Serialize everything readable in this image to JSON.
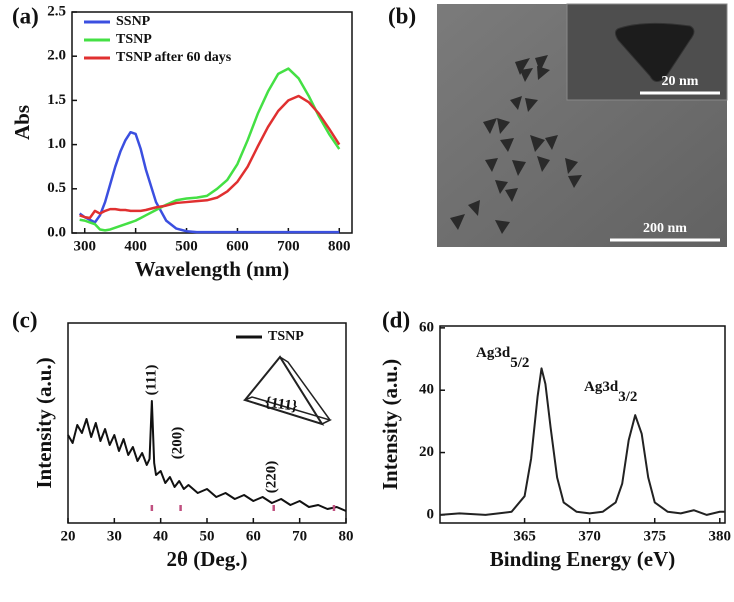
{
  "chart_data": [
    {
      "type": "line",
      "panel_label": "(a)",
      "xlabel": "Wavelength (nm)",
      "ylabel": "Abs",
      "xlim": [
        275,
        825
      ],
      "ylim": [
        0,
        2.5
      ],
      "xticks": [
        300,
        400,
        500,
        600,
        700,
        800
      ],
      "yticks": [
        {
          "value": 0,
          "label": "0.0"
        },
        0.5,
        {
          "value": 1,
          "label": "1.0"
        },
        1.5,
        {
          "value": 2,
          "label": "2.0"
        },
        2.5
      ],
      "x": [
        290,
        300,
        310,
        320,
        330,
        340,
        350,
        360,
        370,
        380,
        390,
        400,
        410,
        420,
        440,
        460,
        480,
        500,
        520,
        540,
        560,
        580,
        600,
        620,
        640,
        660,
        680,
        700,
        720,
        740,
        760,
        780,
        800
      ],
      "series": [
        {
          "name": "SSNP",
          "color": "#3b4fe0",
          "values": [
            0.22,
            0.18,
            0.15,
            0.12,
            0.2,
            0.35,
            0.55,
            0.75,
            0.92,
            1.05,
            1.14,
            1.12,
            0.95,
            0.72,
            0.35,
            0.14,
            0.05,
            0.02,
            0.01,
            0.01,
            0.01,
            0.01,
            0.01,
            0.01,
            0.01,
            0.01,
            0.01,
            0.01,
            0.01,
            0.01,
            0.01,
            0.01,
            0.01
          ]
        },
        {
          "name": "TSNP",
          "color": "#44e044",
          "values": [
            0.15,
            0.14,
            0.12,
            0.1,
            0.04,
            0.03,
            0.04,
            0.06,
            0.08,
            0.1,
            0.12,
            0.14,
            0.17,
            0.2,
            0.26,
            0.32,
            0.37,
            0.39,
            0.4,
            0.42,
            0.5,
            0.6,
            0.78,
            1.05,
            1.35,
            1.6,
            1.8,
            1.86,
            1.75,
            1.55,
            1.32,
            1.12,
            0.95
          ]
        },
        {
          "name": "TSNP after 60 days",
          "color": "#e03030",
          "values": [
            0.2,
            0.18,
            0.17,
            0.25,
            0.22,
            0.25,
            0.27,
            0.27,
            0.26,
            0.26,
            0.25,
            0.25,
            0.25,
            0.26,
            0.29,
            0.31,
            0.34,
            0.35,
            0.36,
            0.37,
            0.4,
            0.47,
            0.58,
            0.75,
            0.98,
            1.2,
            1.38,
            1.5,
            1.55,
            1.48,
            1.35,
            1.18,
            1.0
          ]
        }
      ]
    },
    {
      "type": "image",
      "panel_label": "(b)",
      "scale_label": "200 nm",
      "inset_scale_label": "20 nm"
    },
    {
      "type": "line",
      "panel_label": "(c)",
      "xlabel": "2θ (Deg.)",
      "ylabel": "Intensity (a.u.)",
      "xlim": [
        20,
        80
      ],
      "ylim": [
        0,
        100
      ],
      "xticks": [
        20,
        30,
        40,
        50,
        60,
        70,
        80
      ],
      "x": [
        20,
        21,
        22,
        23,
        24,
        25,
        26,
        27,
        28,
        29,
        30,
        31,
        32,
        33,
        34,
        35,
        36,
        37,
        37.6,
        38.1,
        38.6,
        39,
        40,
        41,
        42,
        43,
        44,
        45,
        46,
        48,
        50,
        52,
        54,
        56,
        58,
        60,
        62,
        64,
        66,
        68,
        70,
        72,
        74,
        76,
        78,
        80
      ],
      "series": [
        {
          "name": "TSNP",
          "color": "#111111",
          "values": [
            44,
            40,
            49,
            45,
            52,
            43,
            50,
            41,
            47,
            39,
            44,
            36,
            42,
            34,
            38,
            31,
            35,
            29,
            32,
            61,
            30,
            24,
            26,
            20,
            23,
            18,
            21,
            17,
            19,
            15,
            17,
            13,
            15,
            12,
            14,
            11,
            13,
            10,
            12,
            9,
            11,
            8,
            9,
            7,
            8,
            6
          ]
        }
      ],
      "reference_peaks": [
        38.1,
        44.3,
        64.4,
        77.4
      ],
      "reference_color": "#c05080",
      "annotations": [
        "(111)",
        "(200)",
        "(220)"
      ],
      "inset_label": "{111}"
    },
    {
      "type": "line",
      "panel_label": "(d)",
      "xlabel": "Binding Energy (eV)",
      "ylabel": "Intensity (a.u.)",
      "xlim": [
        358.5,
        380.4
      ],
      "ylim": [
        -2.6,
        60.6
      ],
      "xticks": [
        365,
        370,
        375,
        380
      ],
      "yticks": [
        0,
        20,
        40,
        60
      ],
      "x": [
        358.5,
        360,
        362,
        363,
        364,
        365,
        365.5,
        366,
        366.3,
        366.6,
        367,
        367.5,
        368,
        369,
        370,
        371,
        372,
        372.5,
        373,
        373.5,
        374,
        374.5,
        375,
        376,
        377,
        378,
        379,
        380,
        380.4
      ],
      "series": [
        {
          "color": "#222222",
          "values": [
            0,
            0.5,
            0,
            0.5,
            1,
            6,
            18,
            38,
            47,
            42,
            28,
            12,
            4,
            1,
            0.5,
            1,
            4,
            10,
            24,
            32,
            26,
            12,
            4,
            1,
            0.5,
            1.5,
            0,
            1,
            1
          ]
        }
      ],
      "annotations": [
        {
          "text": "Ag3d",
          "sub": "5/2"
        },
        {
          "text": "Ag3d",
          "sub": "3/2"
        }
      ]
    }
  ]
}
